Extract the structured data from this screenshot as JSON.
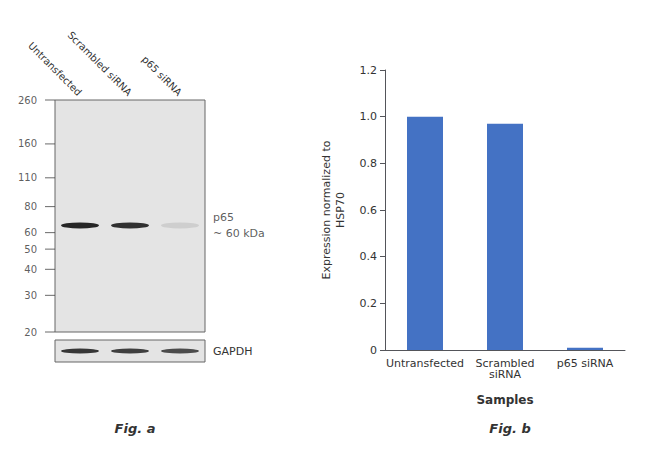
{
  "chart_data": [
    {
      "type": "blot",
      "title": "Fig. a",
      "categories": [
        "Untransfected",
        "Scrambled siRNA",
        "p65 siRNA"
      ],
      "log": "y",
      "ylim": [
        20,
        260
      ],
      "yticks": [
        260,
        160,
        110,
        80,
        60,
        50,
        40,
        30,
        20
      ],
      "color": "#111111",
      "band": {
        "kda": 65,
        "annotations": [
          "p65",
          "~ 60 kDa"
        ],
        "intensity": [
          0.9,
          0.85,
          0.1
        ]
      },
      "control": {
        "name": "GAPDH",
        "intensity": [
          0.82,
          0.78,
          0.72
        ]
      }
    },
    {
      "type": "bar",
      "title": "Fig. b",
      "categories": [
        "Untransfected",
        "Scrambled\nsiRNA",
        "p65 siRNA"
      ],
      "values": [
        1.0,
        0.97,
        0.01
      ],
      "color": "#4472c4",
      "xlabel": "Samples",
      "ylabel": "Expression normalized to\nHSP70",
      "ylim": [
        0,
        1.2
      ],
      "yticks": [
        0,
        0.2,
        0.4,
        0.6,
        0.8,
        {
          "value": 1.0,
          "label": "1.0"
        },
        1.2
      ],
      "grid": false
    }
  ]
}
